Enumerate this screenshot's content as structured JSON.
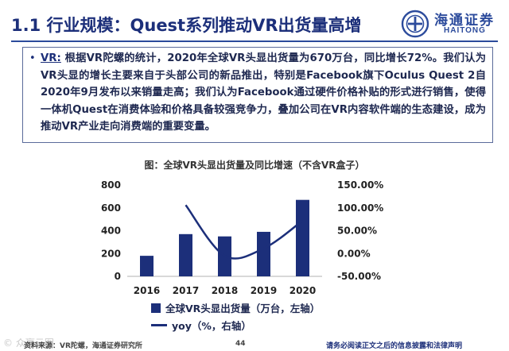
{
  "slide": {
    "title": "1.1 行业规模：Quest系列推动VR出货量高增",
    "logo": {
      "chinese": "海通证券",
      "english": "HAITONG"
    }
  },
  "bullet": {
    "keyword": "VR:",
    "text": " 根据VR陀螺的统计，2020年全球VR头显出货量为670万台，同比增长72%。我们认为VR头显的增长主要来自于头部公司的新品推出，特别是Facebook旗下Oculus Quest 2自2020年9月发布以来销量走高；我们认为Facebook通过硬件价格补贴的形式进行销售，使得一体机Quest在消费体验和价格具备较强竞争力，叠加公司在VR内容软件端的生态建设，成为推动VR产业走向消费端的重要变量。"
  },
  "chart_data": {
    "type": "bar",
    "title": "图：全球VR头显出货量及同比增速（不含VR盒子）",
    "categories": [
      "2016",
      "2017",
      "2018",
      "2019",
      "2020"
    ],
    "series": [
      {
        "name": "全球VR头显出货量（万台，左轴）",
        "type": "bar",
        "axis": "left",
        "values": [
          180,
          370,
          350,
          390,
          670
        ]
      },
      {
        "name": "yoy（%，右轴）",
        "type": "line",
        "axis": "right",
        "values": [
          null,
          106,
          -5,
          11,
          72
        ]
      }
    ],
    "y_left": {
      "ticks": [
        0,
        200,
        400,
        600,
        800
      ],
      "ylim": [
        0,
        800
      ]
    },
    "y_right": {
      "ticks": [
        "-50.00%",
        "0.00%",
        "50.00%",
        "100.00%",
        "150.00%"
      ],
      "ylim": [
        -50,
        150
      ]
    },
    "grid": false,
    "legend_position": "bottom",
    "colors": {
      "bar": "#1c2f7a",
      "line": "#1c2f7a"
    }
  },
  "footer": {
    "source": "资料来源：VR陀螺，海通证券研究所",
    "page": "44",
    "disclaimer": "请务必阅读正文之后的信息披露和法律声明",
    "watermark": "© 众赢云图"
  }
}
